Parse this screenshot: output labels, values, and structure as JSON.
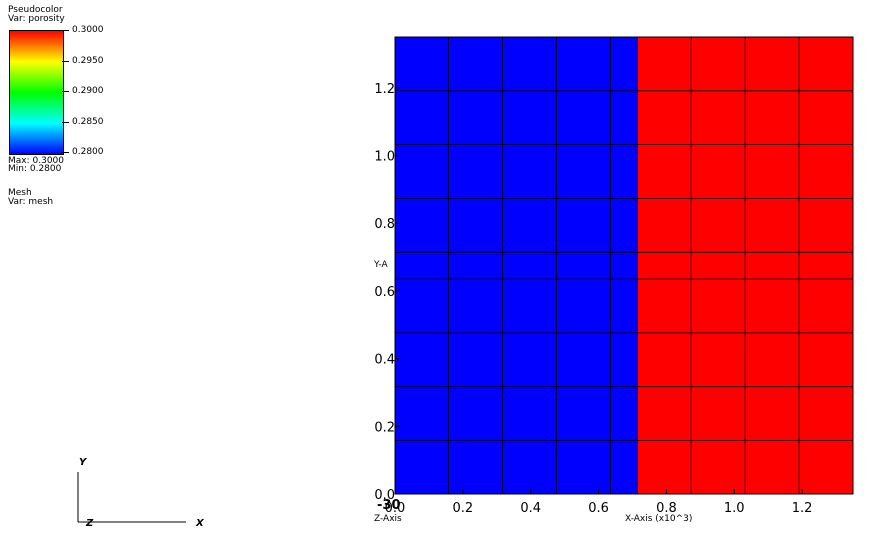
{
  "legend": {
    "plot_type": "Pseudocolor",
    "variable": "Var: porosity",
    "colorbar_ticks": [
      "0.3000",
      "0.2950",
      "0.2900",
      "0.2850",
      "0.2800"
    ],
    "max_text": "Max:  0.3000",
    "min_text": "Min:  0.2800",
    "mesh_title": "Mesh",
    "mesh_var": "Var: mesh",
    "colors": [
      "#ff0000",
      "#ffff00",
      "#00ff00",
      "#00ffff",
      "#0000ff"
    ]
  },
  "triad": {
    "x": "X",
    "y": "Y",
    "z": "Z"
  },
  "chart_data": {
    "type": "heatmap",
    "xlabel": "X-Axis (x10^3)",
    "ylabel": "Y-A",
    "zlabel": "Z-Axis",
    "z_tick": "-30",
    "xlim": [
      0.0,
      1.35
    ],
    "ylim": [
      0.0,
      1.35
    ],
    "x_ticks": [
      "0.0",
      "0.2",
      "0.4",
      "0.6",
      "0.8",
      "1.0",
      "1.2"
    ],
    "y_ticks": [
      "0.0",
      "0.2",
      "0.4",
      "0.6",
      "0.8",
      "1.0",
      "1.2"
    ],
    "x_tick_values": [
      0.0,
      0.2,
      0.4,
      0.6,
      0.8,
      1.0,
      1.2
    ],
    "y_tick_values": [
      0.0,
      0.2,
      0.4,
      0.6,
      0.8,
      1.0,
      1.2
    ],
    "x_edges": [
      0.0,
      0.158,
      0.317,
      0.476,
      0.635,
      0.714,
      0.873,
      1.032,
      1.191,
      1.35
    ],
    "y_edges": [
      0.0,
      0.158,
      0.317,
      0.476,
      0.635,
      0.714,
      0.873,
      1.032,
      1.191,
      1.35
    ],
    "regions": [
      {
        "x0": 0.0,
        "x1": 0.714,
        "value": 0.28,
        "color": "#0000ff"
      },
      {
        "x0": 0.714,
        "x1": 1.35,
        "value": 0.3,
        "color": "#ff0000"
      }
    ],
    "grid": true,
    "legend": "top-left"
  }
}
